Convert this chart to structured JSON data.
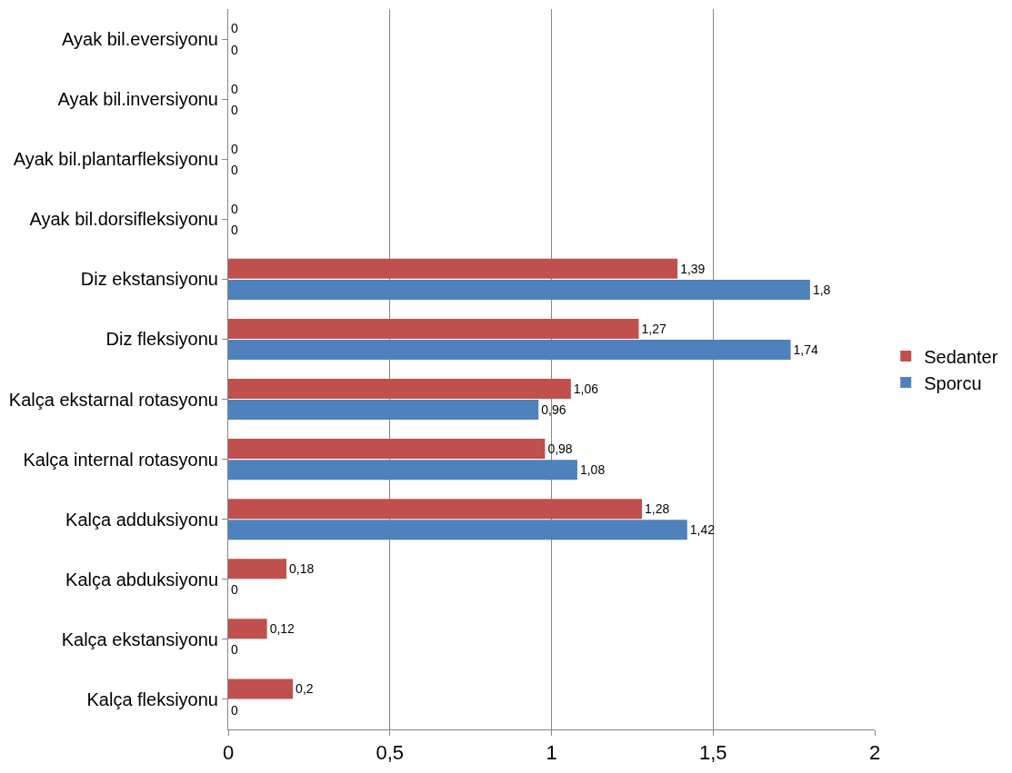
{
  "chart_data": {
    "type": "bar",
    "orientation": "horizontal",
    "categories": [
      "Ayak bil.eversiyonu",
      "Ayak bil.inversiyonu",
      "Ayak bil.plantarfleksiyonu",
      "Ayak bil.dorsifleksiyonu",
      "Diz ekstansiyonu",
      "Diz fleksiyonu",
      "Kalça ekstarnal rotasyonu",
      "Kalça internal rotasyonu",
      "Kalça adduksiyonu",
      "Kalça abduksiyonu",
      "Kalça ekstansiyonu",
      "Kalça fleksiyonu"
    ],
    "series": [
      {
        "name": "Sedanter",
        "color": "#c0504d",
        "values": [
          0,
          0,
          0,
          0,
          1.39,
          1.27,
          1.06,
          0.98,
          1.28,
          0.18,
          0.12,
          0.2
        ],
        "value_labels": [
          "0",
          "0",
          "0",
          "0",
          "1,39",
          "1,27",
          "1,06",
          "0,98",
          "1,28",
          "0,18",
          "0,12",
          "0,2"
        ]
      },
      {
        "name": "Sporcu",
        "color": "#4f81bd",
        "values": [
          0,
          0,
          0,
          0,
          1.8,
          1.74,
          0.96,
          1.08,
          1.42,
          0,
          0,
          0
        ],
        "value_labels": [
          "0",
          "0",
          "0",
          "0",
          "1,8",
          "1,74",
          "0,96",
          "1,08",
          "1,42",
          "0",
          "0",
          "0"
        ]
      }
    ],
    "xlim": [
      0,
      2
    ],
    "xticks": [
      0,
      {
        "value": 0.5,
        "label": "0,5"
      },
      1,
      {
        "value": 1.5,
        "label": "1,5"
      },
      2
    ],
    "grid": "x",
    "legend": "right"
  }
}
